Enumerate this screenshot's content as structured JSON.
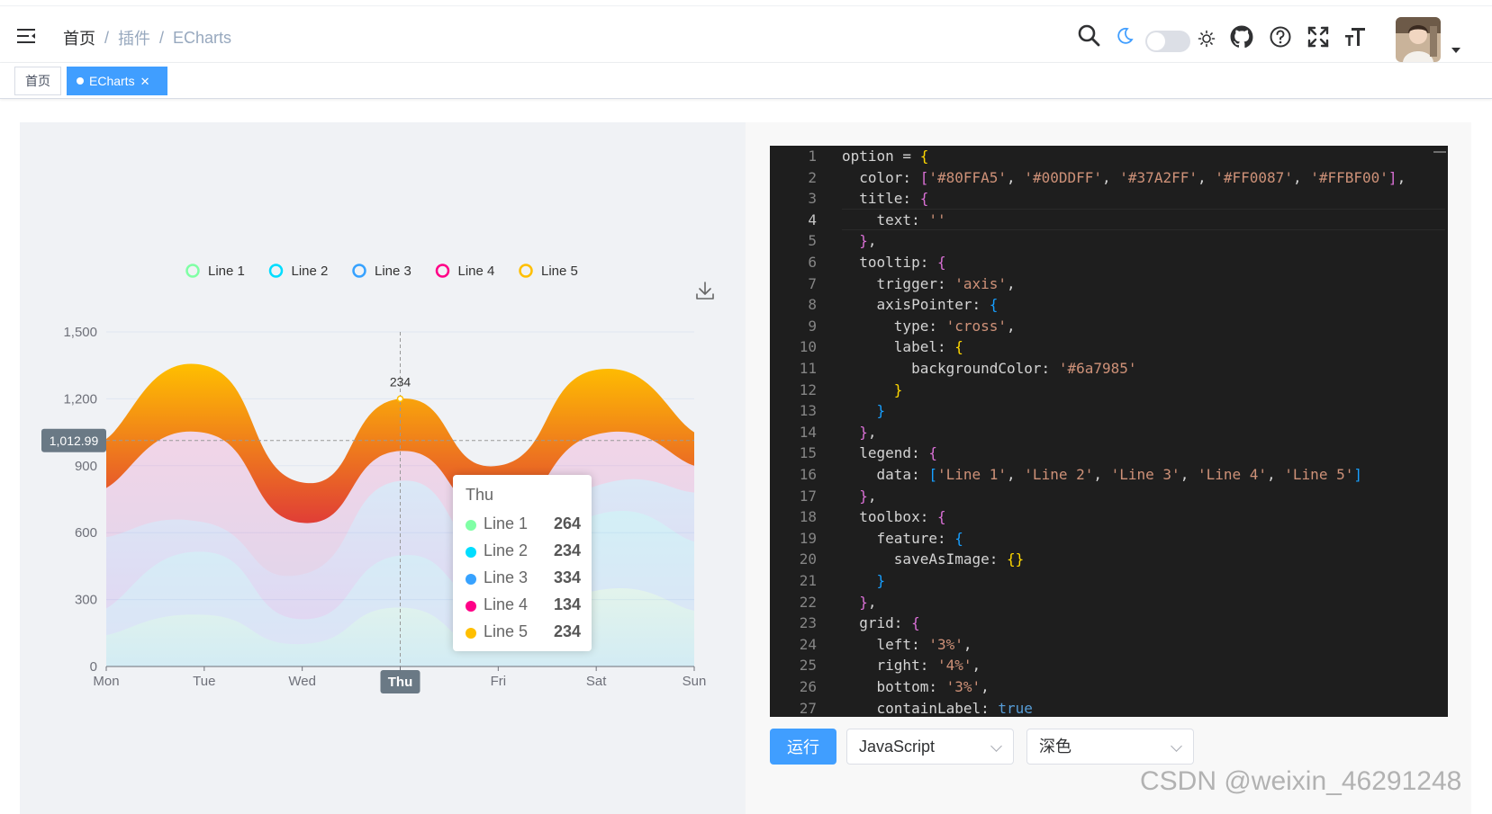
{
  "header": {
    "breadcrumb": [
      "首页",
      "插件",
      "ECharts"
    ],
    "icons": [
      "menu-fold-icon",
      "search-icon",
      "moon-icon",
      "sun-icon",
      "github-icon",
      "help-icon",
      "fullscreen-icon",
      "font-size-icon"
    ],
    "dark_mode_on": false
  },
  "tags": {
    "home": "首页",
    "active": "ECharts",
    "close_glyph": "✕"
  },
  "chart_data": {
    "type": "area",
    "series_style": "stacked smooth area",
    "categories": [
      "Mon",
      "Tue",
      "Wed",
      "Thu",
      "Fri",
      "Sat",
      "Sun"
    ],
    "series": [
      {
        "name": "Line 1",
        "color": "#80FFA5",
        "values": [
          140,
          232,
          101,
          264,
          90,
          340,
          250
        ]
      },
      {
        "name": "Line 2",
        "color": "#00DDFF",
        "values": [
          120,
          282,
          111,
          234,
          220,
          340,
          310
        ]
      },
      {
        "name": "Line 3",
        "color": "#37A2FF",
        "values": [
          320,
          132,
          201,
          334,
          190,
          130,
          220
        ]
      },
      {
        "name": "Line 4",
        "color": "#FF0087",
        "values": [
          220,
          402,
          231,
          134,
          190,
          230,
          120
        ]
      },
      {
        "name": "Line 5",
        "color": "#FFBF00",
        "values": [
          220,
          302,
          181,
          234,
          210,
          290,
          150
        ]
      }
    ],
    "ylim": [
      0,
      1500
    ],
    "yticks": [
      "0",
      "300",
      "600",
      "900",
      "1,200",
      "1,500"
    ],
    "legend_position": "top",
    "grid": true,
    "axis_pointer": {
      "x_label": "Thu",
      "y_label": "1,012.99",
      "y_value": 1012.99
    },
    "data_label": {
      "category": "Thu",
      "text": "234"
    },
    "tooltip": {
      "title": "Thu",
      "rows": [
        {
          "name": "Line 1",
          "value": "264"
        },
        {
          "name": "Line 2",
          "value": "234"
        },
        {
          "name": "Line 3",
          "value": "334"
        },
        {
          "name": "Line 4",
          "value": "134"
        },
        {
          "name": "Line 5",
          "value": "234"
        }
      ]
    }
  },
  "editor": {
    "active_line": 4,
    "lines": [
      "option = {",
      "  color: ['#80FFA5', '#00DDFF', '#37A2FF', '#FF0087', '#FFBF00'],",
      "  title: {",
      "    text: ''",
      "  },",
      "  tooltip: {",
      "    trigger: 'axis',",
      "    axisPointer: {",
      "      type: 'cross',",
      "      label: {",
      "        backgroundColor: '#6a7985'",
      "      }",
      "    }",
      "  },",
      "  legend: {",
      "    data: ['Line 1', 'Line 2', 'Line 3', 'Line 4', 'Line 5']",
      "  },",
      "  toolbox: {",
      "    feature: {",
      "      saveAsImage: {}",
      "    }",
      "  },",
      "  grid: {",
      "    left: '3%',",
      "    right: '4%',",
      "    bottom: '3%',",
      "    containLabel: true"
    ]
  },
  "controls": {
    "run_label": "运行",
    "language": "JavaScript",
    "theme": "深色"
  },
  "watermark": "CSDN @weixin_46291248"
}
